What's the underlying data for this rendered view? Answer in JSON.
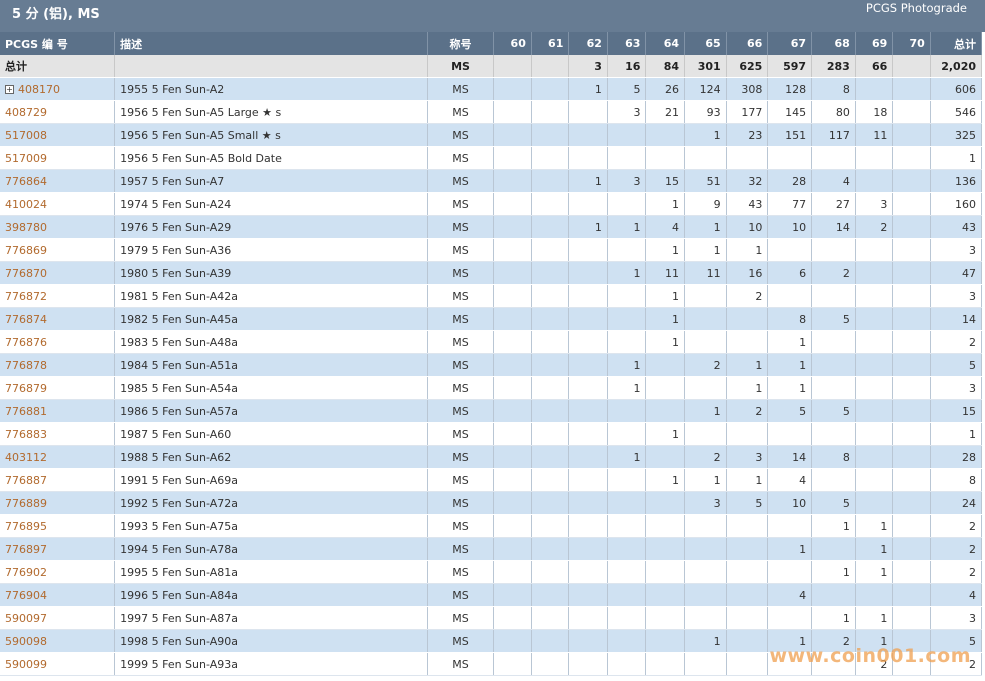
{
  "header": {
    "title": "5 分 (铝), MS",
    "photograde": "PCGS Photograde"
  },
  "columns": [
    "PCGS 编 号",
    "描述",
    "称号",
    "60",
    "61",
    "62",
    "63",
    "64",
    "65",
    "66",
    "67",
    "68",
    "69",
    "70",
    "总计"
  ],
  "total": [
    "总计",
    "",
    "MS",
    "",
    "",
    "3",
    "16",
    "84",
    "301",
    "625",
    "597",
    "283",
    "66",
    "",
    "2,020"
  ],
  "rows": [
    [
      "408170",
      "1955 5 Fen Sun-A2",
      "MS",
      "",
      "",
      "1",
      "5",
      "26",
      "124",
      "308",
      "128",
      "8",
      "",
      "",
      "606"
    ],
    [
      "408729",
      "1956 5 Fen Sun-A5 Large ★ s",
      "MS",
      "",
      "",
      "",
      "3",
      "21",
      "93",
      "177",
      "145",
      "80",
      "18",
      "",
      "546"
    ],
    [
      "517008",
      "1956 5 Fen Sun-A5 Small ★ s",
      "MS",
      "",
      "",
      "",
      "",
      "",
      "1",
      "23",
      "151",
      "117",
      "11",
      "",
      "325"
    ],
    [
      "517009",
      "1956 5 Fen Sun-A5 Bold Date",
      "MS",
      "",
      "",
      "",
      "",
      "",
      "",
      "",
      "",
      "",
      "",
      "",
      "1"
    ],
    [
      "776864",
      "1957 5 Fen Sun-A7",
      "MS",
      "",
      "",
      "1",
      "3",
      "15",
      "51",
      "32",
      "28",
      "4",
      "",
      "",
      "136"
    ],
    [
      "410024",
      "1974 5 Fen Sun-A24",
      "MS",
      "",
      "",
      "",
      "",
      "1",
      "9",
      "43",
      "77",
      "27",
      "3",
      "",
      "160"
    ],
    [
      "398780",
      "1976 5 Fen Sun-A29",
      "MS",
      "",
      "",
      "1",
      "1",
      "4",
      "1",
      "10",
      "10",
      "14",
      "2",
      "",
      "43"
    ],
    [
      "776869",
      "1979 5 Fen Sun-A36",
      "MS",
      "",
      "",
      "",
      "",
      "1",
      "1",
      "1",
      "",
      "",
      "",
      "",
      "3"
    ],
    [
      "776870",
      "1980 5 Fen Sun-A39",
      "MS",
      "",
      "",
      "",
      "1",
      "11",
      "11",
      "16",
      "6",
      "2",
      "",
      "",
      "47"
    ],
    [
      "776872",
      "1981 5 Fen Sun-A42a",
      "MS",
      "",
      "",
      "",
      "",
      "1",
      "",
      "2",
      "",
      "",
      "",
      "",
      "3"
    ],
    [
      "776874",
      "1982 5 Fen Sun-A45a",
      "MS",
      "",
      "",
      "",
      "",
      "1",
      "",
      "",
      "8",
      "5",
      "",
      "",
      "14"
    ],
    [
      "776876",
      "1983 5 Fen Sun-A48a",
      "MS",
      "",
      "",
      "",
      "",
      "1",
      "",
      "",
      "1",
      "",
      "",
      "",
      "2"
    ],
    [
      "776878",
      "1984 5 Fen Sun-A51a",
      "MS",
      "",
      "",
      "",
      "1",
      "",
      "2",
      "1",
      "1",
      "",
      "",
      "",
      "5"
    ],
    [
      "776879",
      "1985 5 Fen Sun-A54a",
      "MS",
      "",
      "",
      "",
      "1",
      "",
      "",
      "1",
      "1",
      "",
      "",
      "",
      "3"
    ],
    [
      "776881",
      "1986 5 Fen Sun-A57a",
      "MS",
      "",
      "",
      "",
      "",
      "",
      "1",
      "2",
      "5",
      "5",
      "",
      "",
      "15"
    ],
    [
      "776883",
      "1987 5 Fen Sun-A60",
      "MS",
      "",
      "",
      "",
      "",
      "1",
      "",
      "",
      "",
      "",
      "",
      "",
      "1"
    ],
    [
      "403112",
      "1988 5 Fen Sun-A62",
      "MS",
      "",
      "",
      "",
      "1",
      "",
      "2",
      "3",
      "14",
      "8",
      "",
      "",
      "28"
    ],
    [
      "776887",
      "1991 5 Fen Sun-A69a",
      "MS",
      "",
      "",
      "",
      "",
      "1",
      "1",
      "1",
      "4",
      "",
      "",
      "",
      "8"
    ],
    [
      "776889",
      "1992 5 Fen Sun-A72a",
      "MS",
      "",
      "",
      "",
      "",
      "",
      "3",
      "5",
      "10",
      "5",
      "",
      "",
      "24"
    ],
    [
      "776895",
      "1993 5 Fen Sun-A75a",
      "MS",
      "",
      "",
      "",
      "",
      "",
      "",
      "",
      "",
      "1",
      "1",
      "",
      "2"
    ],
    [
      "776897",
      "1994 5 Fen Sun-A78a",
      "MS",
      "",
      "",
      "",
      "",
      "",
      "",
      "",
      "1",
      "",
      "1",
      "",
      "2"
    ],
    [
      "776902",
      "1995 5 Fen Sun-A81a",
      "MS",
      "",
      "",
      "",
      "",
      "",
      "",
      "",
      "",
      "1",
      "1",
      "",
      "2"
    ],
    [
      "776904",
      "1996 5 Fen Sun-A84a",
      "MS",
      "",
      "",
      "",
      "",
      "",
      "",
      "",
      "4",
      "",
      "",
      "",
      "4"
    ],
    [
      "590097",
      "1997 5 Fen Sun-A87a",
      "MS",
      "",
      "",
      "",
      "",
      "",
      "",
      "",
      "",
      "1",
      "1",
      "",
      "3"
    ],
    [
      "590098",
      "1998 5 Fen Sun-A90a",
      "MS",
      "",
      "",
      "",
      "",
      "",
      "1",
      "",
      "1",
      "2",
      "1",
      "",
      "5"
    ],
    [
      "590099",
      "1999 5 Fen Sun-A93a",
      "MS",
      "",
      "",
      "",
      "",
      "",
      "",
      "",
      "",
      "",
      "2",
      "",
      "2"
    ]
  ],
  "expandable_row_index": 0,
  "watermark": "www.coin001.com",
  "colors": {
    "header_bg": "#5b7189",
    "title_bg": "#677c93",
    "row_alt": "#cfe1f2",
    "link": "#b26a2e"
  }
}
